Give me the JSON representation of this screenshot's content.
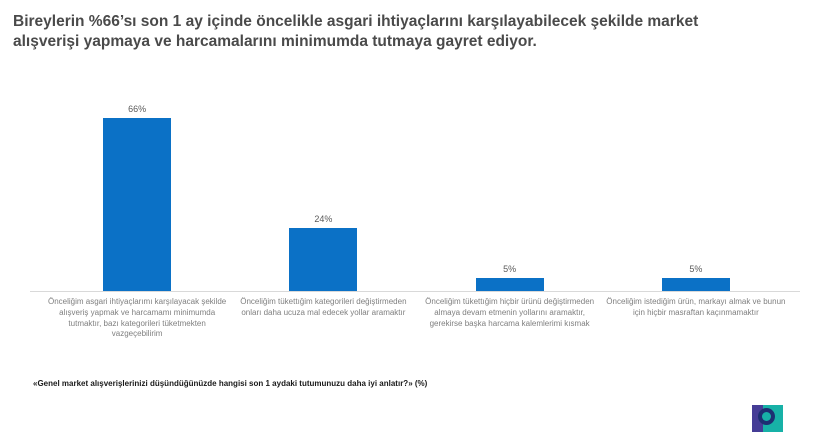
{
  "slide": {
    "title": "Bireylerin %66’sı son 1 ay içinde öncelikle asgari ihtiyaçlarını karşılayabilecek şekilde market alışverişi yapmaya ve harcamalarını minimumda tutmaya gayret ediyor.",
    "footnote": "«Genel market alışverişlerinizi düşündüğünüzde hangisi son 1 aydaki tutumunuzu daha iyi anlatır?» (%)",
    "logo_name": "ipsos-logo"
  },
  "chart_data": {
    "type": "bar",
    "title": "",
    "xlabel": "",
    "ylabel": "",
    "ylim": [
      0,
      70
    ],
    "grid": false,
    "legend": false,
    "bar_color": "#0b71c6",
    "axis_line_color": "#d9d9d9",
    "categories": [
      "Önceliğim asgari ihtiyaçlarımı karşılayacak şekilde alışveriş yapmak ve harcamamı minimumda tutmaktır, bazı kategorileri tüketmekten vazgeçebilirim",
      "Önceliğim tükettığim kategorileri değiştirmeden onları daha ucuza mal edecek yollar aramaktır",
      "Önceliğim tükettığim hiçbir ürünü değiştirmeden almaya devam etmenin yollarını aramaktır, gerekirse başka harcama kalemlerimi kısmak",
      "Önceliğim istediğim ürün, markayı almak ve bunun için hiçbir masraftan kaçınmamaktır"
    ],
    "values": [
      66,
      24,
      5,
      5
    ],
    "value_labels": [
      "66%",
      "24%",
      "5%",
      "5%"
    ]
  }
}
